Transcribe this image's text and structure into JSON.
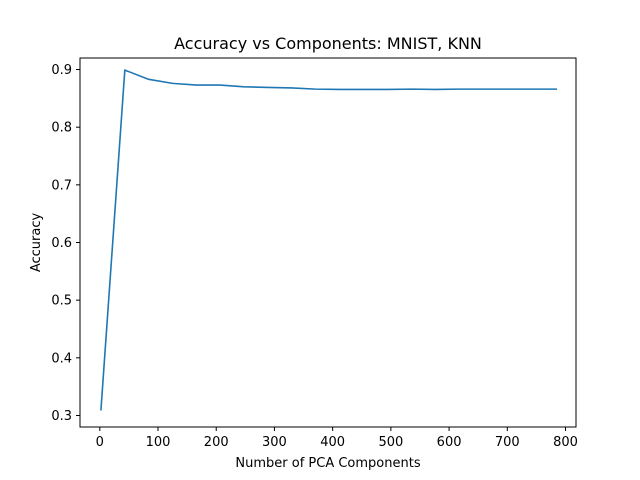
{
  "chart_data": {
    "type": "line",
    "title": "Accuracy vs Components: MNIST, KNN",
    "xlabel": "Number of PCA Components",
    "ylabel": "Accuracy",
    "xlim": [
      -34,
      818
    ],
    "ylim": [
      0.28,
      0.92
    ],
    "xticks": [
      0,
      100,
      200,
      300,
      400,
      500,
      600,
      700,
      800
    ],
    "yticks": [
      0.3,
      0.4,
      0.5,
      0.6,
      0.7,
      0.8,
      0.9
    ],
    "ytick_labels": [
      "0.3",
      "0.4",
      "0.5",
      "0.6",
      "0.7",
      "0.8",
      "0.9"
    ],
    "grid": false,
    "series": [
      {
        "color": "#1f77b4",
        "x": [
          2,
          43,
          84,
          125,
          166,
          207,
          248,
          289,
          330,
          371,
          412,
          453,
          494,
          535,
          576,
          617,
          658,
          699,
          740,
          784
        ],
        "y": [
          0.31,
          0.899,
          0.883,
          0.876,
          0.873,
          0.873,
          0.87,
          0.869,
          0.868,
          0.866,
          0.8655,
          0.8655,
          0.8655,
          0.866,
          0.8655,
          0.866,
          0.866,
          0.866,
          0.866,
          0.866
        ]
      }
    ]
  }
}
